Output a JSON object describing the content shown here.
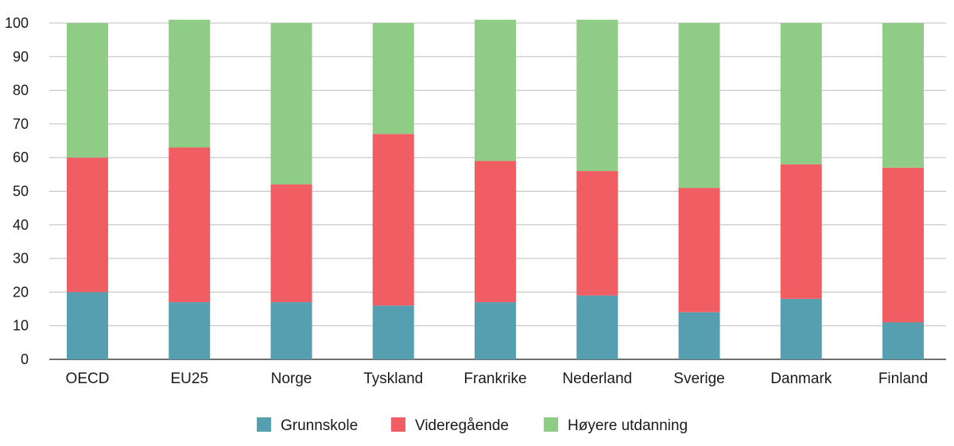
{
  "chart_data": {
    "type": "bar",
    "stacked": true,
    "title": "",
    "xlabel": "",
    "ylabel": "",
    "ylim": [
      0,
      100
    ],
    "yticks": [
      0,
      10,
      20,
      30,
      40,
      50,
      60,
      70,
      80,
      90,
      100
    ],
    "grid": true,
    "legend_position": "bottom",
    "categories": [
      "OECD",
      "EU25",
      "Norge",
      "Tyskland",
      "Frankrike",
      "Nederland",
      "Sverige",
      "Danmark",
      "Finland"
    ],
    "series": [
      {
        "name": "Grunnskole",
        "color": "#559fb0",
        "values": [
          20,
          17,
          17,
          16,
          17,
          19,
          14,
          18,
          11
        ]
      },
      {
        "name": "Videregående",
        "color": "#f05d63",
        "values": [
          40,
          46,
          35,
          51,
          42,
          37,
          37,
          40,
          46
        ]
      },
      {
        "name": "Høyere utdanning",
        "color": "#8fcd86",
        "values": [
          40,
          38,
          48,
          33,
          42,
          45,
          49,
          42,
          43
        ]
      }
    ]
  }
}
